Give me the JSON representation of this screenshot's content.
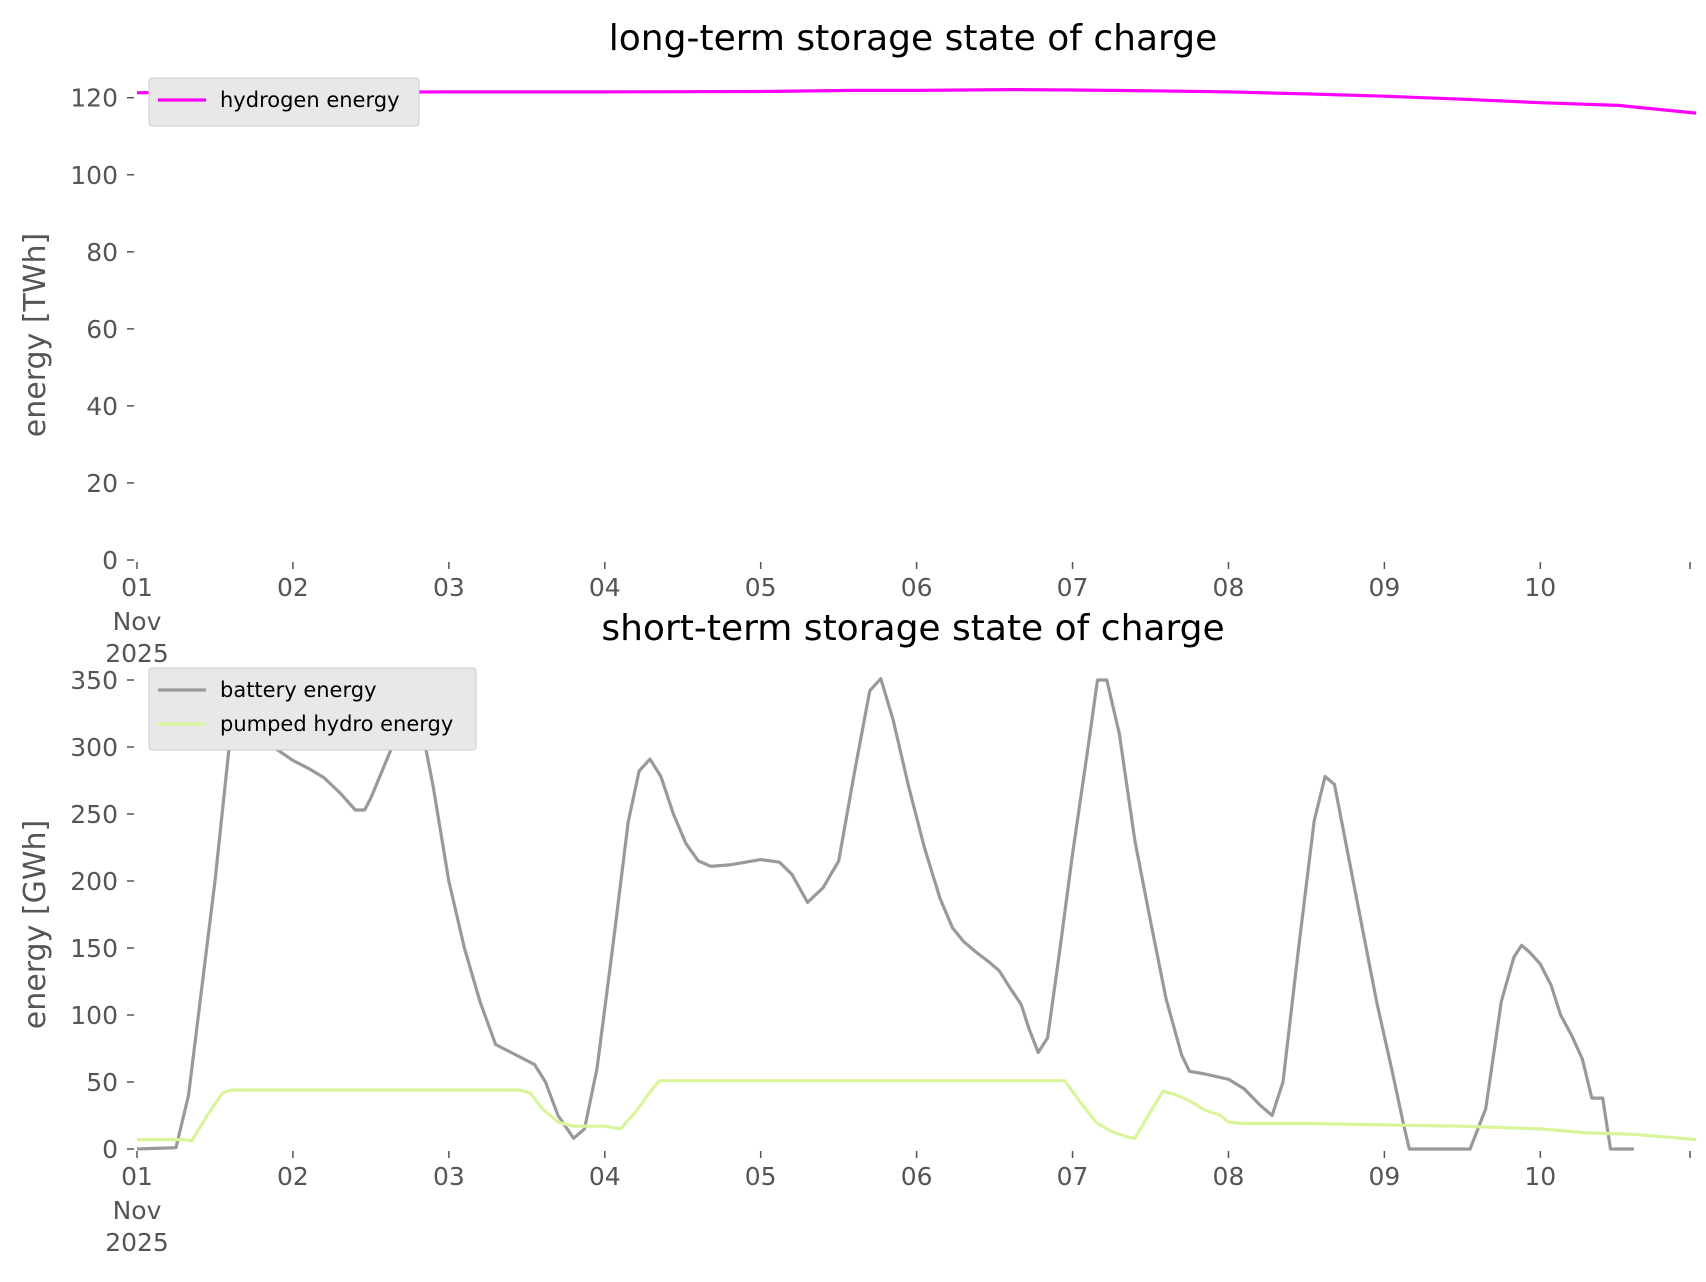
{
  "chart_data": [
    {
      "type": "line",
      "title": "long-term storage state of charge",
      "xlabel": "",
      "ylabel": "energy [TWh]",
      "x_tick_labels": [
        "01",
        "02",
        "03",
        "04",
        "05",
        "06",
        "07",
        "08",
        "09",
        "10"
      ],
      "x_first_tick_extra": [
        "Nov",
        "2025"
      ],
      "x_range_days": [
        0,
        9.96
      ],
      "ylim": [
        0,
        122
      ],
      "y_ticks": [
        0,
        20,
        40,
        60,
        80,
        100,
        120
      ],
      "grid": false,
      "legend_position": "top-left",
      "series": [
        {
          "name": "hydrogen energy",
          "color": "#ff00ff",
          "points": [
            [
              0,
              121.3
            ],
            [
              1,
              121.4
            ],
            [
              2,
              121.5
            ],
            [
              3,
              121.5
            ],
            [
              4,
              121.6
            ],
            [
              4.6,
              121.9
            ],
            [
              5,
              121.9
            ],
            [
              5.6,
              122.1
            ],
            [
              6,
              122.0
            ],
            [
              6.5,
              121.8
            ],
            [
              7,
              121.5
            ],
            [
              7.5,
              121.0
            ],
            [
              8,
              120.4
            ],
            [
              8.5,
              119.6
            ],
            [
              9,
              118.7
            ],
            [
              9.5,
              118.0
            ],
            [
              10,
              116.0
            ]
          ]
        }
      ]
    },
    {
      "type": "line",
      "title": "short-term storage state of charge",
      "xlabel": "",
      "ylabel": "energy [GWh]",
      "x_tick_labels": [
        "01",
        "02",
        "03",
        "04",
        "05",
        "06",
        "07",
        "08",
        "09",
        "10"
      ],
      "x_first_tick_extra": [
        "Nov",
        "2025"
      ],
      "x_range_days": [
        0,
        9.96
      ],
      "ylim": [
        0,
        350
      ],
      "y_ticks": [
        0,
        50,
        100,
        150,
        200,
        250,
        300,
        350
      ],
      "grid": false,
      "legend_position": "top-left",
      "series": [
        {
          "name": "battery energy",
          "color": "#999999",
          "points": [
            [
              0,
              0
            ],
            [
              0.25,
              1
            ],
            [
              0.33,
              40
            ],
            [
              0.5,
              200
            ],
            [
              0.6,
              310
            ],
            [
              0.7,
              318
            ],
            [
              0.8,
              305
            ],
            [
              0.9,
              298
            ],
            [
              1.0,
              290
            ],
            [
              1.1,
              284
            ],
            [
              1.2,
              277
            ],
            [
              1.3,
              266
            ],
            [
              1.4,
              253
            ],
            [
              1.46,
              253
            ],
            [
              1.5,
              262
            ],
            [
              1.6,
              290
            ],
            [
              1.7,
              318
            ],
            [
              1.78,
              320
            ],
            [
              1.85,
              300
            ],
            [
              1.9,
              270
            ],
            [
              2.0,
              200
            ],
            [
              2.1,
              150
            ],
            [
              2.2,
              110
            ],
            [
              2.3,
              78
            ],
            [
              2.4,
              72
            ],
            [
              2.55,
              63
            ],
            [
              2.62,
              50
            ],
            [
              2.7,
              25
            ],
            [
              2.8,
              8
            ],
            [
              2.87,
              15
            ],
            [
              2.95,
              60
            ],
            [
              3.05,
              150
            ],
            [
              3.15,
              244
            ],
            [
              3.22,
              282
            ],
            [
              3.29,
              291
            ],
            [
              3.36,
              278
            ],
            [
              3.44,
              250
            ],
            [
              3.52,
              228
            ],
            [
              3.6,
              215
            ],
            [
              3.68,
              211
            ],
            [
              3.8,
              212
            ],
            [
              4.0,
              216
            ],
            [
              4.12,
              214
            ],
            [
              4.2,
              205
            ],
            [
              4.3,
              184
            ],
            [
              4.4,
              195
            ],
            [
              4.5,
              215
            ],
            [
              4.6,
              280
            ],
            [
              4.7,
              342
            ],
            [
              4.77,
              351
            ],
            [
              4.85,
              320
            ],
            [
              4.95,
              270
            ],
            [
              5.05,
              225
            ],
            [
              5.15,
              187
            ],
            [
              5.23,
              165
            ],
            [
              5.3,
              155
            ],
            [
              5.38,
              147
            ],
            [
              5.46,
              140
            ],
            [
              5.53,
              133
            ],
            [
              5.6,
              120
            ],
            [
              5.67,
              108
            ],
            [
              5.72,
              90
            ],
            [
              5.78,
              72
            ],
            [
              5.84,
              83
            ],
            [
              5.92,
              150
            ],
            [
              6.0,
              220
            ],
            [
              6.1,
              300
            ],
            [
              6.16,
              350
            ],
            [
              6.22,
              350
            ],
            [
              6.3,
              310
            ],
            [
              6.4,
              230
            ],
            [
              6.5,
              170
            ],
            [
              6.6,
              112
            ],
            [
              6.7,
              70
            ],
            [
              6.75,
              58
            ],
            [
              6.85,
              56
            ],
            [
              7.0,
              52
            ],
            [
              7.1,
              45
            ],
            [
              7.2,
              33
            ],
            [
              7.28,
              25
            ],
            [
              7.35,
              50
            ],
            [
              7.45,
              150
            ],
            [
              7.55,
              245
            ],
            [
              7.62,
              278
            ],
            [
              7.68,
              272
            ],
            [
              7.75,
              230
            ],
            [
              7.85,
              170
            ],
            [
              7.95,
              110
            ],
            [
              8.05,
              58
            ],
            [
              8.12,
              20
            ],
            [
              8.16,
              0
            ],
            [
              8.3,
              0
            ],
            [
              8.55,
              0
            ],
            [
              8.65,
              30
            ],
            [
              8.75,
              110
            ],
            [
              8.83,
              143
            ],
            [
              8.88,
              152
            ],
            [
              8.93,
              147
            ],
            [
              9.0,
              138
            ],
            [
              9.07,
              122
            ],
            [
              9.13,
              100
            ],
            [
              9.2,
              85
            ],
            [
              9.27,
              67
            ],
            [
              9.33,
              38
            ],
            [
              9.4,
              38
            ],
            [
              9.45,
              0
            ],
            [
              9.55,
              0
            ],
            [
              9.6,
              0
            ]
          ]
        },
        {
          "name": "pumped hydro energy",
          "color": "#d9f59b",
          "points": [
            [
              0,
              7
            ],
            [
              0.3,
              7
            ],
            [
              0.35,
              6
            ],
            [
              0.45,
              25
            ],
            [
              0.55,
              42
            ],
            [
              0.6,
              44
            ],
            [
              1.0,
              44
            ],
            [
              2.0,
              44
            ],
            [
              2.45,
              44
            ],
            [
              2.52,
              42
            ],
            [
              2.6,
              30
            ],
            [
              2.7,
              20
            ],
            [
              2.8,
              17
            ],
            [
              3.0,
              17
            ],
            [
              3.1,
              15
            ],
            [
              3.2,
              28
            ],
            [
              3.3,
              44
            ],
            [
              3.35,
              51
            ],
            [
              4.0,
              51
            ],
            [
              5.0,
              51
            ],
            [
              5.5,
              51
            ],
            [
              5.95,
              51
            ],
            [
              6.05,
              35
            ],
            [
              6.15,
              20
            ],
            [
              6.25,
              13
            ],
            [
              6.35,
              9
            ],
            [
              6.4,
              8
            ],
            [
              6.5,
              28
            ],
            [
              6.58,
              43
            ],
            [
              6.65,
              41
            ],
            [
              6.75,
              36
            ],
            [
              6.85,
              29
            ],
            [
              6.95,
              25
            ],
            [
              7.0,
              20
            ],
            [
              7.1,
              19
            ],
            [
              7.5,
              19
            ],
            [
              8.0,
              18
            ],
            [
              8.5,
              17
            ],
            [
              9.0,
              15
            ],
            [
              9.3,
              12
            ],
            [
              9.6,
              11
            ],
            [
              10.0,
              7
            ]
          ]
        }
      ]
    }
  ]
}
